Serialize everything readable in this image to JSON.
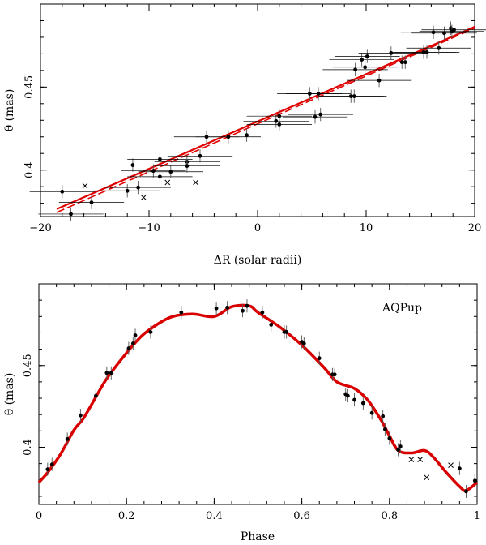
{
  "chart_data": [
    {
      "type": "scatter",
      "panel": "top",
      "title": "",
      "xlabel": "ΔR (solar radii)",
      "ylabel": "θ (mas)",
      "xlim": [
        -20,
        20
      ],
      "ylim": [
        0.372,
        0.5
      ],
      "xticks": [
        -20,
        -10,
        0,
        10,
        20
      ],
      "xtick_labels": [
        "−20",
        "−10",
        "0",
        "10",
        "20"
      ],
      "yticks": [
        0.4,
        0.45
      ],
      "ytick_labels": [
        "0.4",
        "0.45"
      ],
      "fit_color": "#e00000",
      "point_color": "#000000",
      "fit_solid": [
        [
          -18.5,
          0.3765
        ],
        [
          20,
          0.4863
        ]
      ],
      "fit_dashed": [
        [
          -18.5,
          0.3745
        ],
        [
          20,
          0.4855
        ]
      ],
      "points": [
        {
          "x": -18,
          "y": 0.387,
          "xerr": 3,
          "yerr": 0.004
        },
        {
          "x": -17.2,
          "y": 0.3735,
          "xerr": 3,
          "yerr": 0.004
        },
        {
          "x": -15.3,
          "y": 0.3805,
          "xerr": 3,
          "yerr": 0.004
        },
        {
          "x": -12,
          "y": 0.3875,
          "xerr": 3,
          "yerr": 0.004
        },
        {
          "x": -11.5,
          "y": 0.403,
          "xerr": 3,
          "yerr": 0.004
        },
        {
          "x": -11,
          "y": 0.3895,
          "xerr": 3,
          "yerr": 0.004
        },
        {
          "x": -9.6,
          "y": 0.3995,
          "xerr": 3,
          "yerr": 0.004
        },
        {
          "x": -9,
          "y": 0.4065,
          "xerr": 3,
          "yerr": 0.004
        },
        {
          "x": -9,
          "y": 0.396,
          "xerr": 3,
          "yerr": 0.004
        },
        {
          "x": -8,
          "y": 0.399,
          "xerr": 3,
          "yerr": 0.004
        },
        {
          "x": -6.5,
          "y": 0.405,
          "xerr": 3,
          "yerr": 0.004
        },
        {
          "x": -6.5,
          "y": 0.4025,
          "xerr": 3,
          "yerr": 0.004
        },
        {
          "x": -5.3,
          "y": 0.4085,
          "xerr": 3,
          "yerr": 0.004
        },
        {
          "x": -4.7,
          "y": 0.42,
          "xerr": 3,
          "yerr": 0.004
        },
        {
          "x": -2.7,
          "y": 0.42,
          "xerr": 3,
          "yerr": 0.004
        },
        {
          "x": -1,
          "y": 0.421,
          "xerr": 3,
          "yerr": 0.004
        },
        {
          "x": 1.7,
          "y": 0.4295,
          "xerr": 3,
          "yerr": 0.004
        },
        {
          "x": 2,
          "y": 0.4275,
          "xerr": 3,
          "yerr": 0.004
        },
        {
          "x": 2,
          "y": 0.4325,
          "xerr": 3,
          "yerr": 0.004
        },
        {
          "x": 4.8,
          "y": 0.446,
          "xerr": 3,
          "yerr": 0.004
        },
        {
          "x": 5.3,
          "y": 0.432,
          "xerr": 3,
          "yerr": 0.004
        },
        {
          "x": 5.6,
          "y": 0.446,
          "xerr": 3,
          "yerr": 0.004
        },
        {
          "x": 5.8,
          "y": 0.4335,
          "xerr": 3,
          "yerr": 0.004
        },
        {
          "x": 8.6,
          "y": 0.4445,
          "xerr": 3,
          "yerr": 0.004
        },
        {
          "x": 8.9,
          "y": 0.4445,
          "xerr": 3,
          "yerr": 0.004
        },
        {
          "x": 9,
          "y": 0.4605,
          "xerr": 3,
          "yerr": 0.004
        },
        {
          "x": 9.6,
          "y": 0.4665,
          "xerr": 3,
          "yerr": 0.004
        },
        {
          "x": 9.9,
          "y": 0.462,
          "xerr": 3,
          "yerr": 0.004
        },
        {
          "x": 10.1,
          "y": 0.4685,
          "xerr": 3,
          "yerr": 0.004
        },
        {
          "x": 11.2,
          "y": 0.454,
          "xerr": 3,
          "yerr": 0.004
        },
        {
          "x": 12.3,
          "y": 0.4705,
          "xerr": 3,
          "yerr": 0.004
        },
        {
          "x": 13.3,
          "y": 0.465,
          "xerr": 3,
          "yerr": 0.004
        },
        {
          "x": 13.6,
          "y": 0.465,
          "xerr": 3,
          "yerr": 0.004
        },
        {
          "x": 15.3,
          "y": 0.471,
          "xerr": 3,
          "yerr": 0.004
        },
        {
          "x": 15.6,
          "y": 0.471,
          "xerr": 3,
          "yerr": 0.004
        },
        {
          "x": 16.2,
          "y": 0.483,
          "xerr": 3,
          "yerr": 0.004
        },
        {
          "x": 16.7,
          "y": 0.4735,
          "xerr": 3,
          "yerr": 0.004
        },
        {
          "x": 17.2,
          "y": 0.4825,
          "xerr": 3,
          "yerr": 0.004
        },
        {
          "x": 17.8,
          "y": 0.4855,
          "xerr": 3,
          "yerr": 0.004
        },
        {
          "x": 17.9,
          "y": 0.4835,
          "xerr": 3,
          "yerr": 0.004
        },
        {
          "x": 18.1,
          "y": 0.4845,
          "xerr": 3,
          "yerr": 0.004
        }
      ],
      "excluded": [
        {
          "x": -15.9,
          "y": 0.3905
        },
        {
          "x": -10.5,
          "y": 0.3835
        },
        {
          "x": -8.3,
          "y": 0.3925
        },
        {
          "x": -5.7,
          "y": 0.3925
        }
      ]
    },
    {
      "type": "scatter",
      "panel": "bottom",
      "title": "",
      "label": "AQPup",
      "xlabel": "Phase",
      "ylabel": "θ (mas)",
      "xlim": [
        0,
        1
      ],
      "ylim": [
        0.365,
        0.5
      ],
      "xticks": [
        0,
        0.2,
        0.4,
        0.6,
        0.8,
        1
      ],
      "xtick_labels": [
        "0",
        "0.2",
        "0.4",
        "0.6",
        "0.8",
        "1"
      ],
      "yticks": [
        0.4,
        0.45
      ],
      "ytick_labels": [
        "0.4",
        "0.45"
      ],
      "model_color": "#d80000",
      "point_color": "#000000",
      "model_curve": [
        [
          0,
          0.3785
        ],
        [
          0.02,
          0.3845
        ],
        [
          0.05,
          0.396
        ],
        [
          0.08,
          0.4105
        ],
        [
          0.1,
          0.417
        ],
        [
          0.12,
          0.426
        ],
        [
          0.15,
          0.44
        ],
        [
          0.18,
          0.451
        ],
        [
          0.22,
          0.464
        ],
        [
          0.25,
          0.4715
        ],
        [
          0.3,
          0.4795
        ],
        [
          0.35,
          0.4815
        ],
        [
          0.4,
          0.48
        ],
        [
          0.44,
          0.486
        ],
        [
          0.48,
          0.4865
        ],
        [
          0.5,
          0.4825
        ],
        [
          0.55,
          0.4735
        ],
        [
          0.6,
          0.4625
        ],
        [
          0.65,
          0.449
        ],
        [
          0.68,
          0.44
        ],
        [
          0.72,
          0.436
        ],
        [
          0.75,
          0.429
        ],
        [
          0.78,
          0.417
        ],
        [
          0.8,
          0.407
        ],
        [
          0.82,
          0.398
        ],
        [
          0.85,
          0.3965
        ],
        [
          0.88,
          0.398
        ],
        [
          0.9,
          0.394
        ],
        [
          0.93,
          0.3845
        ],
        [
          0.96,
          0.376
        ],
        [
          0.975,
          0.3735
        ],
        [
          1,
          0.3785
        ]
      ],
      "points": [
        {
          "x": 0.02,
          "y": 0.3865,
          "yerr": 0.004
        },
        {
          "x": 0.03,
          "y": 0.3895,
          "yerr": 0.004
        },
        {
          "x": 0.065,
          "y": 0.405,
          "yerr": 0.004
        },
        {
          "x": 0.095,
          "y": 0.4195,
          "yerr": 0.004
        },
        {
          "x": 0.13,
          "y": 0.4315,
          "yerr": 0.004
        },
        {
          "x": 0.155,
          "y": 0.4455,
          "yerr": 0.004
        },
        {
          "x": 0.165,
          "y": 0.4455,
          "yerr": 0.004
        },
        {
          "x": 0.205,
          "y": 0.4605,
          "yerr": 0.004
        },
        {
          "x": 0.215,
          "y": 0.4635,
          "yerr": 0.004
        },
        {
          "x": 0.22,
          "y": 0.4685,
          "yerr": 0.004
        },
        {
          "x": 0.255,
          "y": 0.4705,
          "yerr": 0.004
        },
        {
          "x": 0.325,
          "y": 0.4825,
          "yerr": 0.004
        },
        {
          "x": 0.405,
          "y": 0.485,
          "yerr": 0.004
        },
        {
          "x": 0.43,
          "y": 0.4855,
          "yerr": 0.004
        },
        {
          "x": 0.465,
          "y": 0.4835,
          "yerr": 0.004
        },
        {
          "x": 0.475,
          "y": 0.4865,
          "yerr": 0.004
        },
        {
          "x": 0.51,
          "y": 0.4825,
          "yerr": 0.004
        },
        {
          "x": 0.53,
          "y": 0.475,
          "yerr": 0.004
        },
        {
          "x": 0.56,
          "y": 0.4705,
          "yerr": 0.004
        },
        {
          "x": 0.565,
          "y": 0.4705,
          "yerr": 0.004
        },
        {
          "x": 0.6,
          "y": 0.4645,
          "yerr": 0.004
        },
        {
          "x": 0.605,
          "y": 0.4635,
          "yerr": 0.004
        },
        {
          "x": 0.64,
          "y": 0.4545,
          "yerr": 0.004
        },
        {
          "x": 0.67,
          "y": 0.4445,
          "yerr": 0.004
        },
        {
          "x": 0.675,
          "y": 0.4445,
          "yerr": 0.004
        },
        {
          "x": 0.7,
          "y": 0.4325,
          "yerr": 0.004
        },
        {
          "x": 0.705,
          "y": 0.4315,
          "yerr": 0.004
        },
        {
          "x": 0.72,
          "y": 0.429,
          "yerr": 0.004
        },
        {
          "x": 0.74,
          "y": 0.427,
          "yerr": 0.004
        },
        {
          "x": 0.76,
          "y": 0.421,
          "yerr": 0.004
        },
        {
          "x": 0.785,
          "y": 0.419,
          "yerr": 0.004
        },
        {
          "x": 0.79,
          "y": 0.411,
          "yerr": 0.004
        },
        {
          "x": 0.8,
          "y": 0.4055,
          "yerr": 0.004
        },
        {
          "x": 0.82,
          "y": 0.3985,
          "yerr": 0.004
        },
        {
          "x": 0.825,
          "y": 0.4005,
          "yerr": 0.004
        },
        {
          "x": 0.96,
          "y": 0.387,
          "yerr": 0.004
        },
        {
          "x": 0.975,
          "y": 0.373,
          "yerr": 0.004
        },
        {
          "x": 0.995,
          "y": 0.3795,
          "yerr": 0.004
        }
      ],
      "excluded": [
        {
          "x": 0.85,
          "y": 0.3925
        },
        {
          "x": 0.87,
          "y": 0.3925
        },
        {
          "x": 0.885,
          "y": 0.3815
        },
        {
          "x": 0.94,
          "y": 0.389
        }
      ]
    }
  ]
}
